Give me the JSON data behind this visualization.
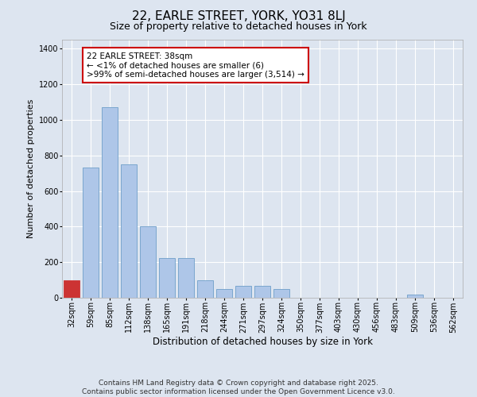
{
  "title_line1": "22, EARLE STREET, YORK, YO31 8LJ",
  "title_line2": "Size of property relative to detached houses in York",
  "xlabel": "Distribution of detached houses by size in York",
  "ylabel": "Number of detached properties",
  "categories": [
    "32sqm",
    "59sqm",
    "85sqm",
    "112sqm",
    "138sqm",
    "165sqm",
    "191sqm",
    "218sqm",
    "244sqm",
    "271sqm",
    "297sqm",
    "324sqm",
    "350sqm",
    "377sqm",
    "403sqm",
    "430sqm",
    "456sqm",
    "483sqm",
    "509sqm",
    "536sqm",
    "562sqm"
  ],
  "values": [
    100,
    730,
    1070,
    750,
    400,
    225,
    225,
    100,
    50,
    65,
    65,
    50,
    0,
    0,
    0,
    0,
    0,
    0,
    18,
    0,
    0
  ],
  "bar_color": "#aec6e8",
  "bar_edge_color": "#6e9fc9",
  "highlight_bar_index": 0,
  "highlight_bar_color": "#cc3333",
  "annotation_text": "22 EARLE STREET: 38sqm\n← <1% of detached houses are smaller (6)\n>99% of semi-detached houses are larger (3,514) →",
  "annotation_box_edge_color": "#cc0000",
  "background_color": "#dde5f0",
  "plot_bg_color": "#dde5f0",
  "ylim": [
    0,
    1450
  ],
  "yticks": [
    0,
    200,
    400,
    600,
    800,
    1000,
    1200,
    1400
  ],
  "footer_line1": "Contains HM Land Registry data © Crown copyright and database right 2025.",
  "footer_line2": "Contains public sector information licensed under the Open Government Licence v3.0.",
  "title_fontsize": 11,
  "subtitle_fontsize": 9,
  "axis_label_fontsize": 8,
  "tick_fontsize": 7,
  "annotation_fontsize": 7.5,
  "footer_fontsize": 6.5
}
